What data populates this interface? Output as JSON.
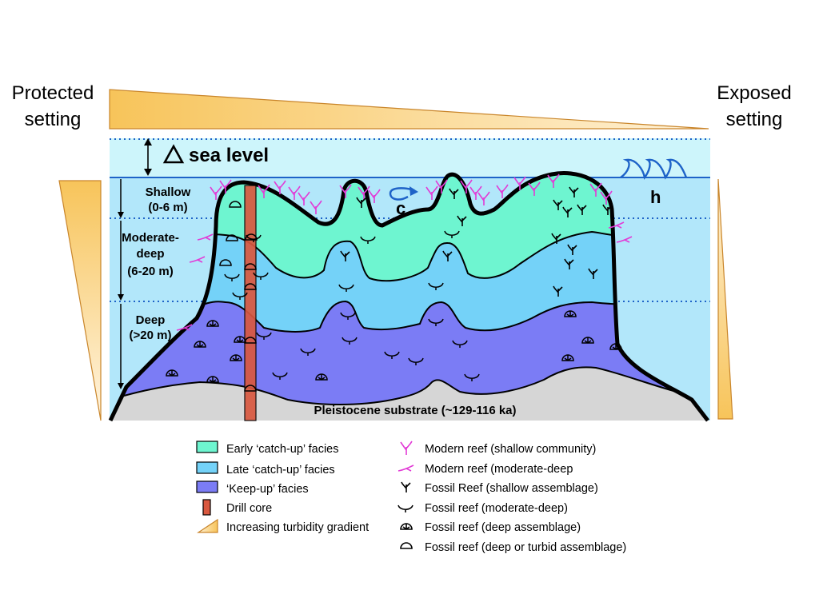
{
  "side_titles": {
    "left": [
      "Protected",
      "setting"
    ],
    "right": [
      "Exposed",
      "setting"
    ]
  },
  "sea_level_label": "sea level",
  "sea_level_delta_symbol": "triangle-delta",
  "current_label": "c",
  "wave_label": "h",
  "depth_zones": {
    "shallow": [
      "Shallow",
      "(0-6 m)"
    ],
    "moderate": [
      "Moderate-",
      "deep",
      "(6-20 m)"
    ],
    "deep": [
      "Deep",
      "(>20 m)"
    ]
  },
  "substrate_label": "Pleistocene substrate (~129-116 ka)",
  "legend_left": [
    {
      "label": "Early ‘catch-up’ facies",
      "symbol": "swatch",
      "color": "#6ef5d0"
    },
    {
      "label": "Late ‘catch-up’ facies",
      "symbol": "swatch",
      "color": "#74d2f8"
    },
    {
      "label": "‘Keep-up’ facies",
      "symbol": "swatch",
      "color": "#7b7cf5"
    },
    {
      "label": "Drill core",
      "symbol": "core",
      "color": "#d9583f"
    },
    {
      "label": "Increasing turbidity gradient",
      "symbol": "wedge",
      "color": "#f7c45a"
    }
  ],
  "legend_right": [
    {
      "label": "Modern reef (shallow community)",
      "symbol": "modern-shallow-coral",
      "color": "#e23bd6"
    },
    {
      "label": "Modern reef (moderate-deep",
      "symbol": "modern-moderate-coral",
      "color": "#e23bd6"
    },
    {
      "label": "Fossil Reef (shallow assemblage)",
      "symbol": "fossil-shallow-coral",
      "color": "#000000"
    },
    {
      "label": "Fossil reef (moderate-deep)",
      "symbol": "fossil-moderate-coral",
      "color": "#000000"
    },
    {
      "label": "Fossil reef (deep assemblage)",
      "symbol": "fossil-deep-coral",
      "color": "#000000"
    },
    {
      "label": "Fossil reef (deep or turbid assemblage)",
      "symbol": "fossil-turbid-coral",
      "color": "#000000"
    }
  ],
  "colors": {
    "sky_water": "#cdf5fb",
    "water": "#b2e7fa",
    "early_catch_up": "#6ef5d0",
    "late_catch_up": "#74d2f8",
    "keep_up": "#7b7cf5",
    "substrate": "#d6d6d6",
    "drill_core": "#d9583f",
    "wave_blue": "#1e63c8",
    "modern_coral": "#e23bd6"
  }
}
